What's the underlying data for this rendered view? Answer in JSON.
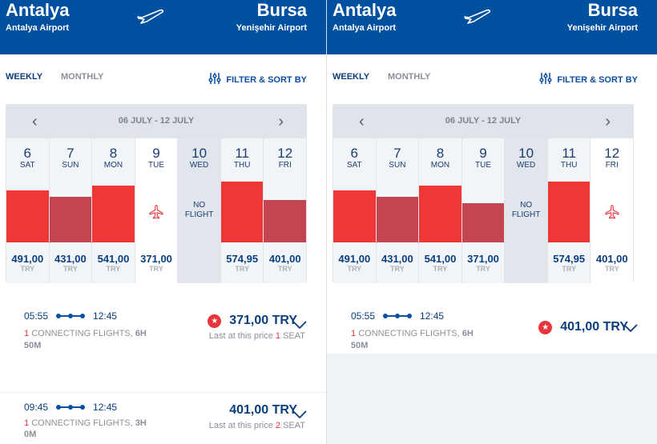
{
  "panels": [
    {
      "header": {
        "from_city": "Antalya",
        "from_airport": "Antalya Airport",
        "to_city": "Bursa",
        "to_airport": "Yenişehir Airport"
      },
      "tabs": {
        "weekly": "WEEKLY",
        "monthly": "MONTHLY",
        "filter": "FILTER & SORT BY"
      },
      "calendar": {
        "range": "06 JULY - 12 JULY"
      },
      "days": [
        {
          "num": "6",
          "name": "SAT",
          "price": "491,00",
          "value": 491,
          "currency": "TRY",
          "color": "#ee3835",
          "state": "normal"
        },
        {
          "num": "7",
          "name": "SUN",
          "price": "431,00",
          "value": 431,
          "currency": "TRY",
          "color": "#c44552",
          "state": "normal"
        },
        {
          "num": "8",
          "name": "MON",
          "price": "541,00",
          "value": 541,
          "currency": "TRY",
          "color": "#ee3835",
          "state": "normal"
        },
        {
          "num": "9",
          "name": "TUE",
          "price": "371,00",
          "value": 371,
          "currency": "TRY",
          "color": "#ee3835",
          "state": "selected"
        },
        {
          "num": "10",
          "name": "WED",
          "no_flight": "NO FLIGHT",
          "state": "noflight"
        },
        {
          "num": "11",
          "name": "THU",
          "price": "574,95",
          "value": 574.95,
          "currency": "TRY",
          "color": "#ee3835",
          "state": "normal"
        },
        {
          "num": "12",
          "name": "FRI",
          "price": "401,00",
          "value": 401,
          "currency": "TRY",
          "color": "#c44552",
          "state": "normal"
        }
      ],
      "flights": [
        {
          "depart": "05:55",
          "arrive": "12:45",
          "stops": "1",
          "conn_text": "CONNECTING FLIGHTS,",
          "duration": "6H 50M",
          "price": "371,00 TRY",
          "best": true,
          "seat_prefix": "Last at this price",
          "seats": "1",
          "seat_suffix": "SEAT"
        },
        {
          "depart": "09:45",
          "arrive": "12:45",
          "stops": "1",
          "conn_text": "CONNECTING FLIGHTS,",
          "duration": "3H 0M",
          "price": "401,00 TRY",
          "best": false,
          "seat_prefix": "Last at this price",
          "seats": "2",
          "seat_suffix": "SEAT"
        }
      ]
    },
    {
      "header": {
        "from_city": "Antalya",
        "from_airport": "Antalya Airport",
        "to_city": "Bursa",
        "to_airport": "Yenişehir Airport"
      },
      "tabs": {
        "weekly": "WEEKLY",
        "monthly": "MONTHLY",
        "filter": "FILTER & SORT BY"
      },
      "calendar": {
        "range": "06 JULY - 12 JULY"
      },
      "days": [
        {
          "num": "6",
          "name": "SAT",
          "price": "491,00",
          "value": 491,
          "currency": "TRY",
          "color": "#ee3835",
          "state": "normal"
        },
        {
          "num": "7",
          "name": "SUN",
          "price": "431,00",
          "value": 431,
          "currency": "TRY",
          "color": "#c44552",
          "state": "normal"
        },
        {
          "num": "8",
          "name": "MON",
          "price": "541,00",
          "value": 541,
          "currency": "TRY",
          "color": "#ee3835",
          "state": "normal"
        },
        {
          "num": "9",
          "name": "TUE",
          "price": "371,00",
          "value": 371,
          "currency": "TRY",
          "color": "#c44552",
          "state": "normal"
        },
        {
          "num": "10",
          "name": "WED",
          "no_flight": "NO FLIGHT",
          "state": "noflight"
        },
        {
          "num": "11",
          "name": "THU",
          "price": "574,95",
          "value": 574.95,
          "currency": "TRY",
          "color": "#ee3835",
          "state": "normal"
        },
        {
          "num": "12",
          "name": "FRI",
          "price": "401,00",
          "value": 401,
          "currency": "TRY",
          "color": "#ee3835",
          "state": "selected"
        }
      ],
      "flights": [
        {
          "depart": "05:55",
          "arrive": "12:45",
          "stops": "1",
          "conn_text": "CONNECTING FLIGHTS,",
          "duration": "6H 50M",
          "price": "401,00 TRY",
          "best": true
        }
      ]
    }
  ]
}
